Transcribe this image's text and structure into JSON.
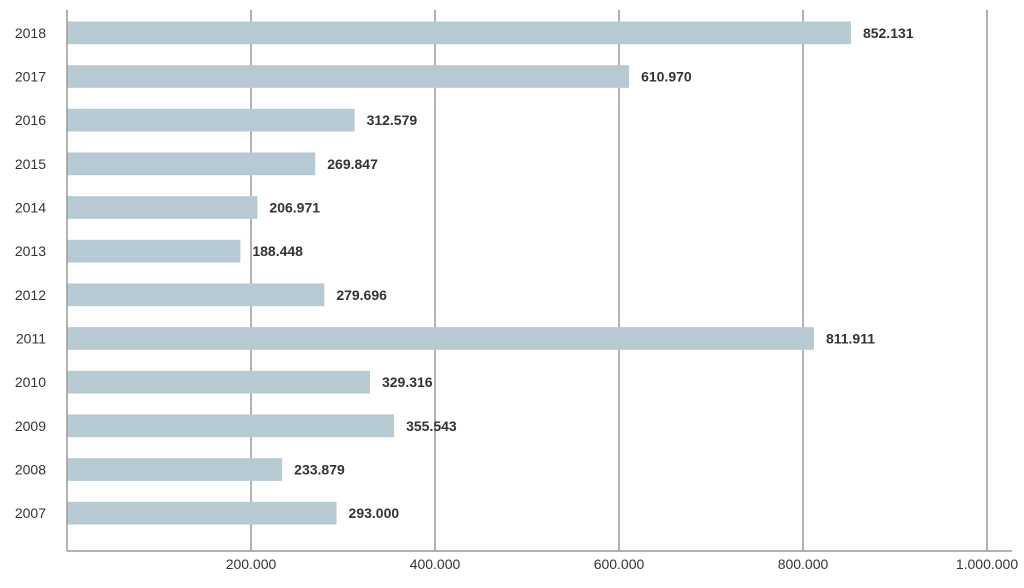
{
  "chart_data": {
    "type": "bar",
    "orientation": "horizontal",
    "categories": [
      "2018",
      "2017",
      "2016",
      "2015",
      "2014",
      "2013",
      "2012",
      "2011",
      "2010",
      "2009",
      "2008",
      "2007"
    ],
    "series": [
      {
        "values": [
          852131,
          610970,
          312579,
          269847,
          206971,
          188448,
          279696,
          811911,
          329316,
          355543,
          233879,
          293000
        ],
        "labels": [
          "852.131",
          "610.970",
          "312.579",
          "269.847",
          "206.971",
          "188.448",
          "279.696",
          "811.911",
          "329.316",
          "355.543",
          "233.879",
          "293.000"
        ]
      }
    ],
    "xlim": [
      0,
      1000000
    ],
    "xticks": [
      200000,
      400000,
      600000,
      800000,
      1000000
    ],
    "xtick_labels": [
      "200.000",
      "400.000",
      "600.000",
      "800.000",
      "1.000.000"
    ],
    "grid": "vertical",
    "bar_color": "#b7cad3",
    "grid_color": "#999999",
    "title": "",
    "xlabel": "",
    "ylabel": ""
  }
}
